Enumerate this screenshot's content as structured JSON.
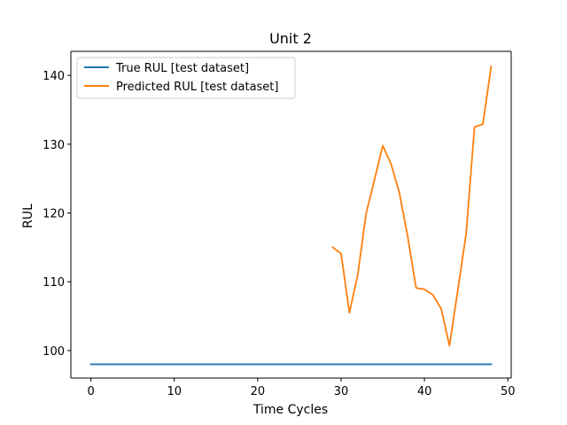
{
  "chart_data": {
    "type": "line",
    "title": "Unit 2",
    "xlabel": "Time Cycles",
    "ylabel": "RUL",
    "xlim": [
      -2.4,
      50.4
    ],
    "ylim": [
      96.0,
      143.5
    ],
    "xticks": [
      0,
      10,
      20,
      30,
      40,
      50
    ],
    "yticks": [
      100,
      110,
      120,
      130,
      140
    ],
    "legend_position": "upper-left",
    "grid": false,
    "series": [
      {
        "name": "True RUL [test dataset]",
        "color": "#1f77b4",
        "x": [
          0,
          48
        ],
        "y": [
          98,
          98
        ]
      },
      {
        "name": "Predicted RUL [test dataset]",
        "color": "#ff7f0e",
        "x": [
          29,
          30,
          31,
          32,
          33,
          34,
          35,
          36,
          37,
          38,
          39,
          40,
          41,
          42,
          43,
          44,
          45,
          46,
          47,
          48
        ],
        "y": [
          115.0,
          114.1,
          105.5,
          111.0,
          119.9,
          124.8,
          129.8,
          127.1,
          122.9,
          116.5,
          109.1,
          108.9,
          108.1,
          106.1,
          100.7,
          108.8,
          117.0,
          132.5,
          132.9,
          141.3
        ]
      }
    ]
  }
}
